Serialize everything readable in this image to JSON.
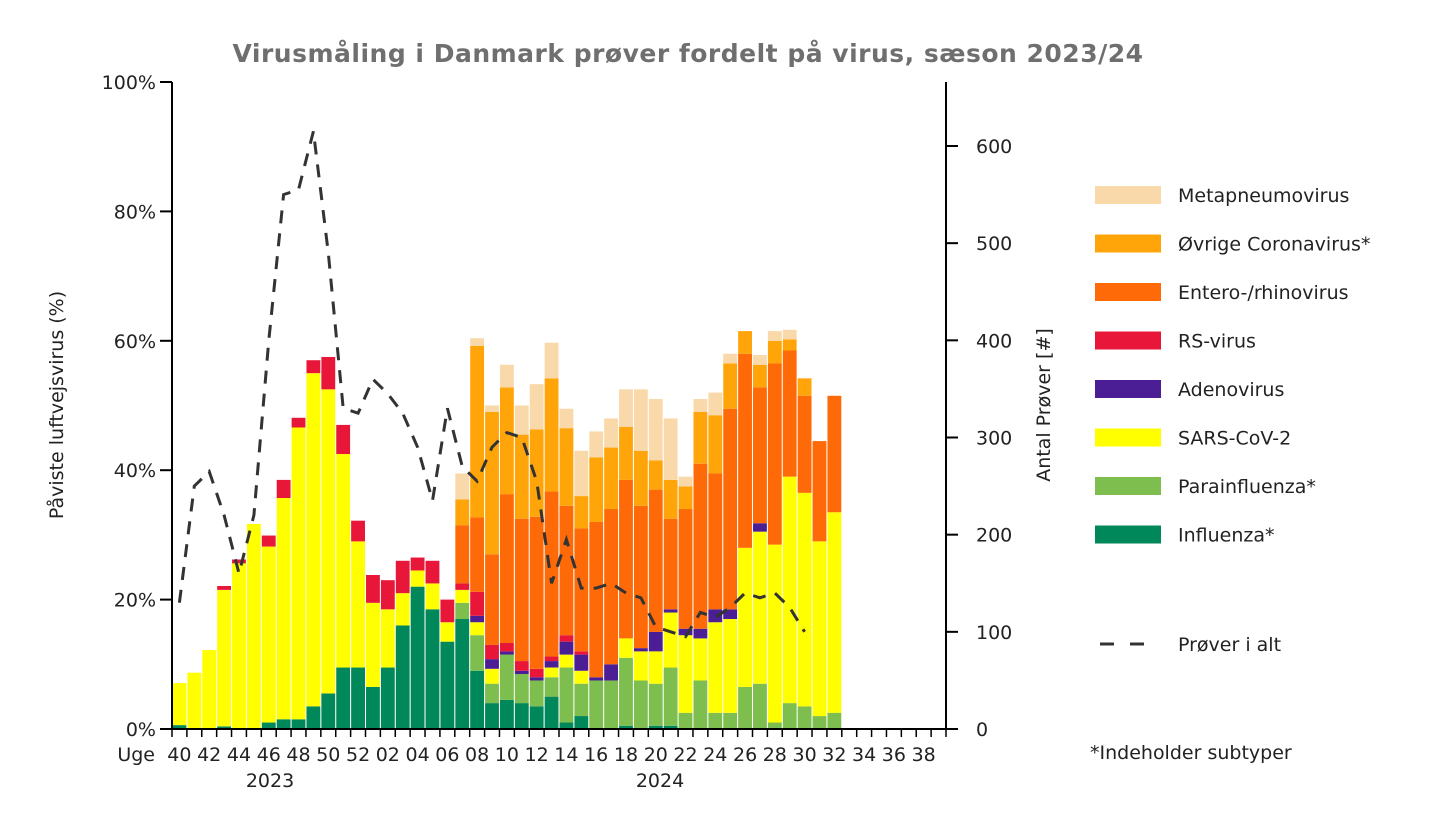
{
  "chart_data": {
    "type": "bar",
    "stacked": true,
    "title": "Virusmåling i Danmark prøver fordelt på virus, sæson 2023/24",
    "ylabel": "Påviste luftvejsvirus (%)",
    "y2label": "Antal Prøver [#]",
    "ylim": [
      0,
      100
    ],
    "y2lim": [
      0,
      600
    ],
    "y_ticks": [
      "0%",
      "20%",
      "40%",
      "60%",
      "80%",
      "100%"
    ],
    "y2_ticks": [
      "0",
      "100",
      "200",
      "300",
      "400",
      "500",
      "600"
    ],
    "x_axis_prefix": "Uge",
    "x_ticks": [
      "40",
      "42",
      "44",
      "46",
      "48",
      "50",
      "52",
      "02",
      "04",
      "06",
      "08",
      "10",
      "12",
      "14",
      "16",
      "18",
      "20",
      "22",
      "24",
      "26",
      "28",
      "30",
      "32",
      "34",
      "36",
      "38"
    ],
    "years": [
      "2023",
      "2024"
    ],
    "footnote": "*Indeholder subtyper",
    "weeks": [
      "40",
      "41",
      "42",
      "43",
      "44",
      "45",
      "46",
      "47",
      "48",
      "49",
      "50",
      "51",
      "52",
      "01",
      "02",
      "03",
      "04",
      "05",
      "06",
      "07",
      "08",
      "09",
      "10",
      "11",
      "12",
      "13",
      "14",
      "15",
      "16",
      "17",
      "18",
      "19",
      "20",
      "21",
      "22",
      "23",
      "24",
      "25",
      "26",
      "27",
      "28",
      "29",
      "30",
      "31",
      "32"
    ],
    "series": [
      {
        "name": "Influenza*",
        "color": "#00875a",
        "values": [
          0.6,
          0,
          0,
          0.4,
          0,
          0,
          1,
          1.5,
          1.5,
          3.5,
          5.5,
          9.5,
          9.5,
          6.5,
          9.5,
          16,
          22,
          18.5,
          13.5,
          17,
          9,
          4,
          4.5,
          4,
          3.5,
          5,
          1,
          2,
          0,
          0,
          0.5,
          0,
          0.5,
          0.5,
          0,
          0,
          0,
          0,
          0,
          0,
          0,
          0,
          0,
          0,
          0
        ]
      },
      {
        "name": "Parainfluenza*",
        "color": "#7dbe4e",
        "values": [
          0,
          0,
          0,
          0,
          0,
          0,
          0,
          0,
          0,
          0,
          0,
          0,
          0,
          0,
          0,
          0,
          0,
          0,
          0,
          2.5,
          5.5,
          3,
          7,
          4.5,
          4,
          3,
          8.5,
          5,
          7.5,
          7.5,
          10.5,
          7.5,
          6.5,
          9,
          2.5,
          7.5,
          2.5,
          2.5,
          6.5,
          7,
          1,
          4,
          3.5,
          2,
          2.5
        ]
      },
      {
        "name": "SARS-CoV-2",
        "color": "#ffff00",
        "values": [
          6.5,
          8.7,
          12.2,
          21.1,
          25.6,
          31.7,
          27.2,
          34.2,
          45.1,
          51.5,
          47,
          33,
          19.5,
          13,
          9,
          5,
          2.5,
          4,
          3,
          2,
          2,
          2.3,
          0,
          0,
          0,
          1.5,
          2,
          2,
          0,
          0,
          3,
          4.5,
          5,
          8.5,
          12,
          6.5,
          14,
          14.5,
          21.5,
          23.5,
          27.5,
          35,
          33,
          27,
          31
        ]
      },
      {
        "name": "Adenovirus",
        "color": "#4b1e96",
        "values": [
          0,
          0,
          0,
          0,
          0,
          0,
          0,
          0,
          0,
          0,
          0,
          0,
          0,
          0,
          0,
          0,
          0,
          0,
          0,
          0,
          1,
          1.5,
          0.5,
          0.5,
          0.5,
          1,
          2,
          2.5,
          0.5,
          2.5,
          0,
          0.5,
          3,
          0.5,
          1,
          1.5,
          2,
          1.5,
          0,
          1.3,
          0,
          0,
          0,
          0,
          0
        ]
      },
      {
        "name": "RS-virus",
        "color": "#e8173a",
        "values": [
          0,
          0,
          0,
          0.6,
          0.6,
          0,
          1.7,
          2.8,
          1.5,
          2,
          5,
          4.5,
          3.2,
          4.3,
          4.5,
          5,
          2,
          3.5,
          3.5,
          1,
          3.7,
          2.2,
          1.3,
          1.5,
          1.3,
          0.7,
          1,
          0.5,
          0,
          0,
          0,
          0,
          0,
          0,
          0,
          0,
          0,
          0,
          0,
          0,
          0,
          0,
          0,
          0,
          0
        ]
      },
      {
        "name": "Entero-/rhinovirus",
        "color": "#ff6a08",
        "values": [
          0,
          0,
          0,
          0,
          0,
          0,
          0,
          0,
          0,
          0,
          0,
          0,
          0,
          0,
          0,
          0,
          0,
          0,
          0,
          9,
          11.5,
          14,
          23,
          22,
          23.5,
          25.5,
          20,
          19,
          24,
          24,
          24.5,
          22,
          22,
          14,
          18.5,
          25.5,
          21,
          31,
          30,
          21,
          28,
          19.5,
          15,
          15.5,
          18
        ]
      },
      {
        "name": "Øvrige Coronavirus*",
        "color": "#ffa50a",
        "values": [
          0,
          0,
          0,
          0,
          0,
          0,
          0,
          0,
          0,
          0,
          0,
          0,
          0,
          0,
          0,
          0,
          0,
          0,
          0,
          4,
          26.5,
          22,
          16.5,
          13,
          13.5,
          17.5,
          12,
          5,
          10,
          9.5,
          8.2,
          8.5,
          4.5,
          6,
          3.5,
          8,
          9,
          7,
          3.5,
          3.5,
          3.5,
          1.7,
          2.7,
          0,
          0
        ]
      },
      {
        "name": "Metapneumovirus",
        "color": "#f9d9a9",
        "values": [
          0,
          0,
          0,
          0,
          0,
          0,
          0,
          0,
          0,
          0,
          0,
          0,
          0,
          0,
          0,
          0,
          0,
          0,
          0,
          4,
          1.2,
          1,
          3.5,
          4.5,
          7,
          5.5,
          3,
          7,
          4,
          4.5,
          5.8,
          9.5,
          9.5,
          9.5,
          1.5,
          2,
          3.5,
          1.5,
          0,
          1.5,
          1.5,
          1.5,
          0,
          0,
          0
        ]
      }
    ],
    "line": {
      "name": "Prøver i alt",
      "axis": "right",
      "values": [
        130,
        250,
        265,
        220,
        160,
        220,
        400,
        550,
        555,
        615,
        490,
        330,
        325,
        360,
        345,
        325,
        290,
        235,
        330,
        270,
        255,
        290,
        305,
        300,
        255,
        150,
        195,
        145,
        145,
        150,
        140,
        135,
        105,
        100,
        95,
        120,
        115,
        125,
        140,
        135,
        140,
        125,
        100,
        null,
        null
      ]
    }
  }
}
